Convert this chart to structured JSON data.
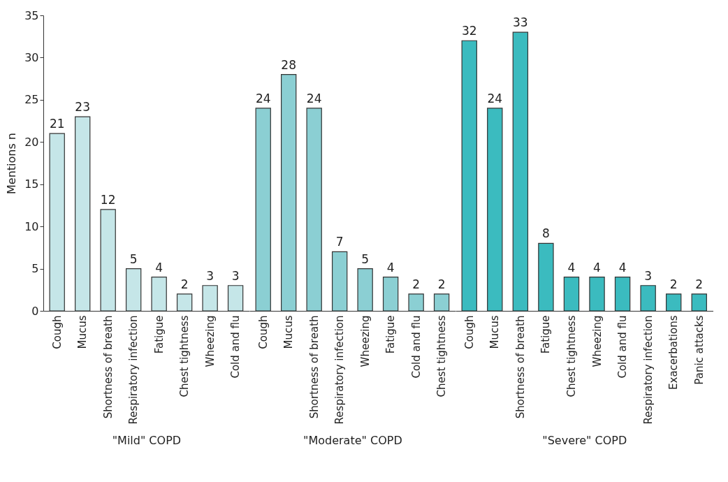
{
  "chart_data": [
    {
      "type": "bar",
      "xlabel": "\"Mild\" COPD",
      "ylabel": "Mentions n",
      "categories": [
        "Cough",
        "Mucus",
        "Shortness of breath",
        "Respiratory infection",
        "Fatigue",
        "Chest tightness",
        "Wheezing",
        "Cold and flu"
      ],
      "values": [
        21,
        23,
        12,
        5,
        4,
        2,
        3,
        3
      ],
      "color": "#c5e6e8",
      "data_labels": true,
      "ylim": [
        0,
        35
      ],
      "yticks": [
        0,
        5,
        10,
        15,
        20,
        25,
        30,
        35
      ]
    },
    {
      "type": "bar",
      "xlabel": "\"Moderate\" COPD",
      "categories": [
        "Cough",
        "Mucus",
        "Shortness of breath",
        "Respiratory infection",
        "Wheezing",
        "Fatigue",
        "Cold and flu",
        "Chest tightness"
      ],
      "values": [
        24,
        28,
        24,
        7,
        5,
        4,
        2,
        2
      ],
      "color": "#8bcfd3",
      "data_labels": true,
      "ylim": [
        0,
        35
      ],
      "tick_labels": "x"
    },
    {
      "type": "bar",
      "xlabel": "\"Severe\" COPD",
      "categories": [
        "Cough",
        "Mucus",
        "Shortness of breath",
        "Fatigue",
        "Chest tightness",
        "Wheezing",
        "Cold and flu",
        "Respiratory infection",
        "Exacerbations",
        "Panic attacks"
      ],
      "values": [
        32,
        24,
        33,
        8,
        4,
        4,
        4,
        3,
        2,
        2
      ],
      "color": "#3bbbbf",
      "data_labels": true,
      "ylim": [
        0,
        35
      ],
      "tick_labels": "x"
    }
  ]
}
